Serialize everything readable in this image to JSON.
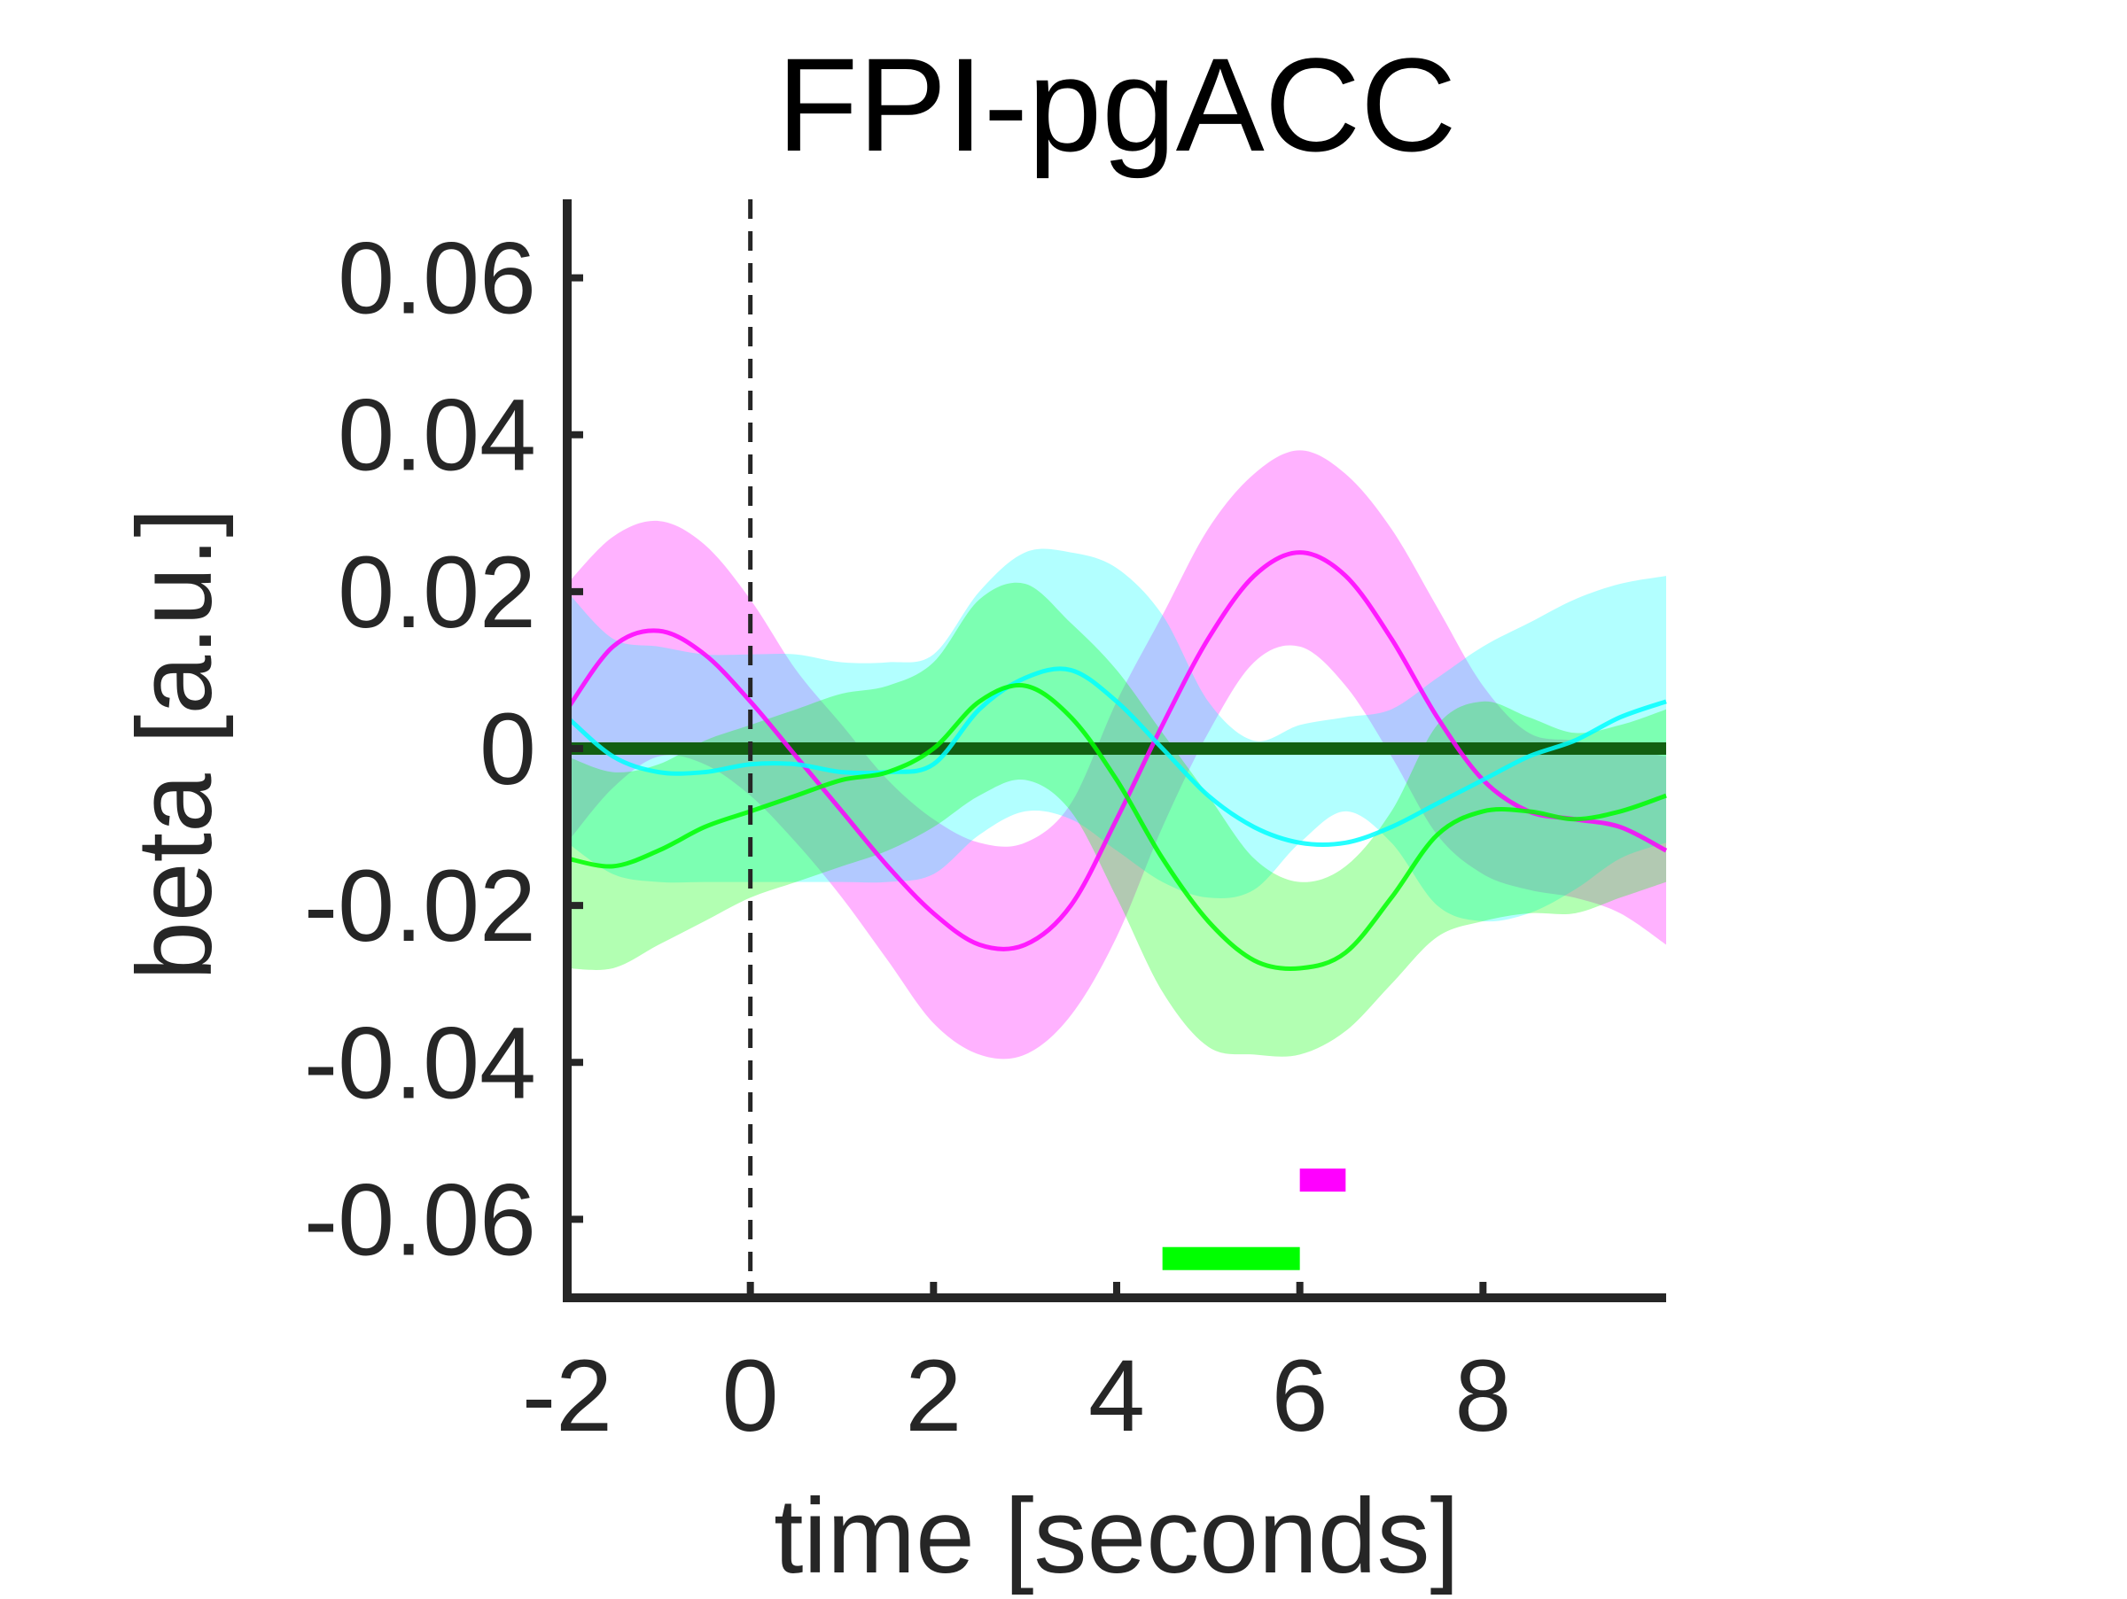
{
  "chart_data": {
    "type": "line",
    "title": "FPI-pgACC",
    "xlabel": "time [seconds]",
    "ylabel": "beta [a.u.]",
    "xlim": [
      -2,
      10
    ],
    "ylim": [
      -0.07,
      0.07
    ],
    "xticks": [
      -2,
      0,
      2,
      4,
      6,
      8
    ],
    "xtick_labels": [
      "-2",
      "0",
      "2",
      "4",
      "6",
      "8"
    ],
    "yticks": [
      -0.06,
      -0.04,
      -0.02,
      0,
      0.02,
      0.04,
      0.06
    ],
    "ytick_labels": [
      "-0.06",
      "-0.04",
      "-0.02",
      "0",
      "0.02",
      "0.04",
      "0.06"
    ],
    "grid": false,
    "legend": "none",
    "x": [
      -2,
      -1.5,
      -1,
      -0.5,
      0,
      0.5,
      1,
      1.5,
      2,
      2.5,
      3,
      3.5,
      4,
      4.5,
      5,
      5.5,
      6,
      6.5,
      7,
      7.5,
      8,
      8.5,
      9,
      9.5,
      10
    ],
    "zero_line": {
      "y": 0,
      "color": "#00ff00"
    },
    "event_line": {
      "x": 0,
      "style": "dashed",
      "color": "#262626"
    },
    "series": [
      {
        "color": "#ff00ff",
        "values": [
          0.005,
          0.013,
          0.015,
          0.012,
          0.006,
          -0.001,
          -0.008,
          -0.015,
          -0.021,
          -0.025,
          -0.025,
          -0.02,
          -0.009,
          0.003,
          0.014,
          0.022,
          0.025,
          0.022,
          0.014,
          0.004,
          -0.004,
          -0.008,
          -0.009,
          -0.01,
          -0.013
        ],
        "lower": [
          -0.012,
          -0.005,
          -0.001,
          -0.002,
          -0.006,
          -0.012,
          -0.019,
          -0.027,
          -0.035,
          -0.039,
          -0.039,
          -0.034,
          -0.024,
          -0.01,
          0.002,
          0.011,
          0.013,
          0.008,
          -0.001,
          -0.011,
          -0.016,
          -0.018,
          -0.019,
          -0.021,
          -0.025
        ],
        "upper": [
          0.021,
          0.027,
          0.029,
          0.026,
          0.019,
          0.01,
          0.003,
          -0.004,
          -0.009,
          -0.012,
          -0.012,
          -0.007,
          0.006,
          0.017,
          0.028,
          0.035,
          0.038,
          0.035,
          0.028,
          0.018,
          0.008,
          0.002,
          0.001,
          0.0,
          -0.001
        ]
      },
      {
        "color": "#00ffff",
        "values": [
          0.004,
          -0.001,
          -0.003,
          -0.003,
          -0.002,
          -0.002,
          -0.003,
          -0.003,
          -0.002,
          0.005,
          0.009,
          0.01,
          0.006,
          0.0,
          -0.006,
          -0.01,
          -0.012,
          -0.012,
          -0.01,
          -0.007,
          -0.004,
          -0.001,
          0.001,
          0.004,
          0.006
        ],
        "lower": [
          -0.012,
          -0.016,
          -0.017,
          -0.017,
          -0.017,
          -0.017,
          -0.017,
          -0.017,
          -0.016,
          -0.011,
          -0.008,
          -0.009,
          -0.013,
          -0.017,
          -0.019,
          -0.018,
          -0.012,
          -0.008,
          -0.012,
          -0.02,
          -0.022,
          -0.021,
          -0.018,
          -0.014,
          -0.012
        ],
        "upper": [
          0.02,
          0.014,
          0.013,
          0.012,
          0.012,
          0.012,
          0.011,
          0.011,
          0.012,
          0.02,
          0.025,
          0.025,
          0.023,
          0.017,
          0.006,
          0.001,
          0.003,
          0.004,
          0.005,
          0.009,
          0.013,
          0.016,
          0.019,
          0.021,
          0.022
        ]
      },
      {
        "color": "#00ff00",
        "values": [
          -0.014,
          -0.015,
          -0.013,
          -0.01,
          -0.008,
          -0.006,
          -0.004,
          -0.003,
          0.0,
          0.006,
          0.008,
          0.004,
          -0.004,
          -0.014,
          -0.022,
          -0.027,
          -0.028,
          -0.026,
          -0.019,
          -0.011,
          -0.008,
          -0.008,
          -0.009,
          -0.008,
          -0.006
        ],
        "lower": [
          -0.028,
          -0.028,
          -0.025,
          -0.022,
          -0.019,
          -0.017,
          -0.015,
          -0.013,
          -0.01,
          -0.006,
          -0.004,
          -0.008,
          -0.019,
          -0.031,
          -0.038,
          -0.039,
          -0.039,
          -0.036,
          -0.03,
          -0.024,
          -0.022,
          -0.021,
          -0.021,
          -0.019,
          -0.017
        ],
        "upper": [
          -0.001,
          -0.003,
          -0.002,
          0.001,
          0.003,
          0.005,
          0.007,
          0.008,
          0.011,
          0.019,
          0.021,
          0.016,
          0.01,
          0.002,
          -0.006,
          -0.014,
          -0.017,
          -0.015,
          -0.008,
          0.003,
          0.006,
          0.004,
          0.002,
          0.003,
          0.005
        ]
      }
    ],
    "significance_bars": [
      {
        "color": "#ff00ff",
        "x_start": 6.0,
        "x_end": 6.5,
        "y": -0.055
      },
      {
        "color": "#00ff00",
        "x_start": 4.5,
        "x_end": 6.0,
        "y": -0.065
      }
    ]
  }
}
